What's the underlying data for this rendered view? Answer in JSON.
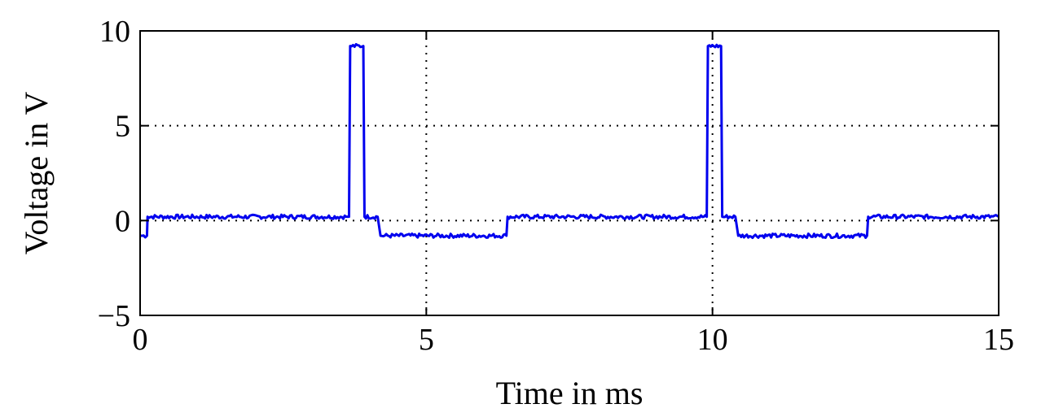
{
  "chart_data": {
    "type": "line",
    "title": "",
    "xlabel": "Time in ms",
    "ylabel": "Voltage in V",
    "xlim": [
      0,
      15
    ],
    "ylim": [
      -5,
      10
    ],
    "xticks": [
      0,
      5,
      10,
      15
    ],
    "yticks": [
      -5,
      0,
      5,
      10
    ],
    "xtick_labels": [
      "0",
      "5",
      "10",
      "15"
    ],
    "ytick_labels": [
      "−5",
      "0",
      "5",
      "10"
    ],
    "grid": true,
    "legend": "none",
    "series": [
      {
        "color": "#0000ee",
        "x": [
          0,
          0.12,
          0.13,
          3.6,
          3.65,
          3.67,
          3.9,
          3.92,
          4.15,
          4.2,
          6.4,
          6.42,
          9.9,
          9.92,
          10.15,
          10.17,
          10.4,
          10.45,
          12.7,
          12.72,
          15
        ],
        "y": [
          -0.8,
          -0.8,
          0.2,
          0.2,
          0.2,
          9.2,
          9.2,
          0.2,
          0.2,
          -0.8,
          -0.8,
          0.2,
          0.2,
          9.2,
          9.2,
          0.2,
          0.2,
          -0.8,
          -0.8,
          0.2,
          0.2
        ]
      }
    ]
  }
}
